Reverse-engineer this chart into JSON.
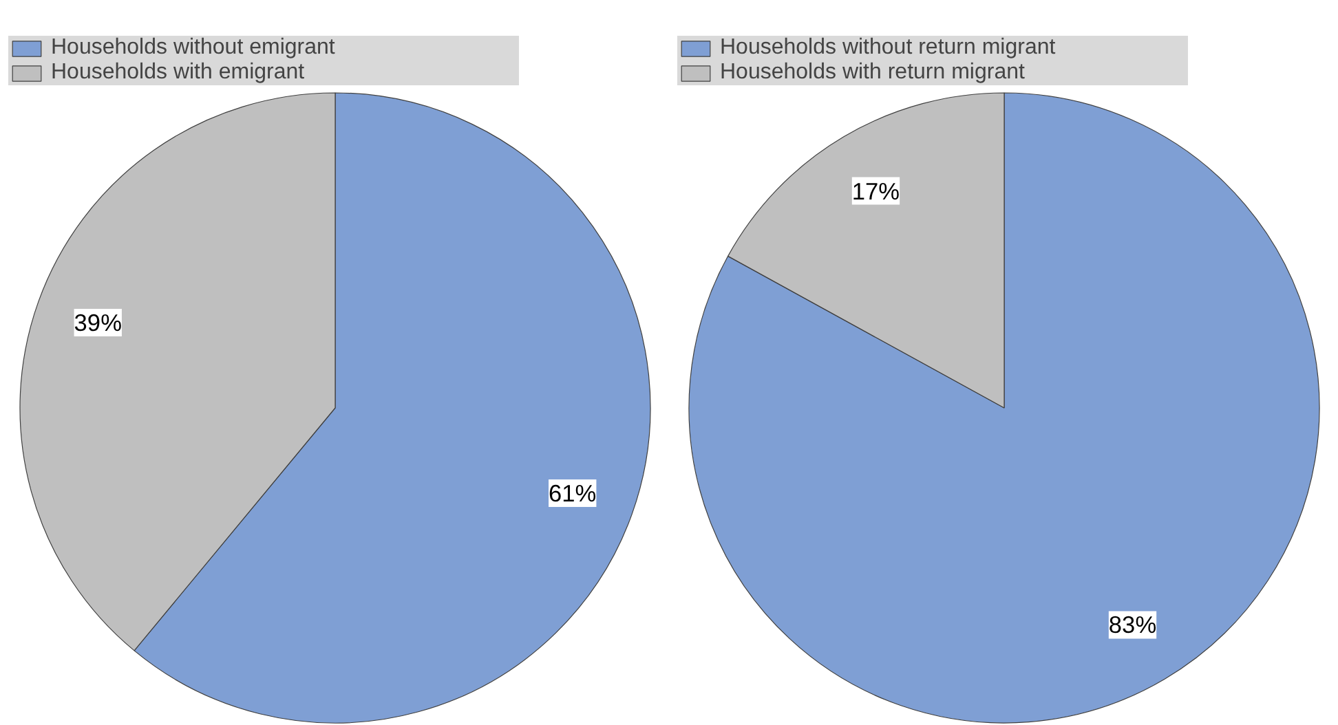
{
  "chart_data": [
    {
      "type": "pie",
      "categories": [
        "Households without emigrant",
        "Households with emigrant"
      ],
      "values": [
        61,
        39
      ],
      "colors": [
        "#7f9fd4",
        "#bfbfbf"
      ],
      "value_labels": [
        "61%",
        "39%"
      ],
      "legend": "top"
    },
    {
      "type": "pie",
      "categories": [
        "Households without return migrant",
        "Households with return migrant"
      ],
      "values": [
        83,
        17
      ],
      "colors": [
        "#7f9fd4",
        "#bfbfbf"
      ],
      "value_labels": [
        "83%",
        "17%"
      ],
      "legend": "top"
    }
  ]
}
